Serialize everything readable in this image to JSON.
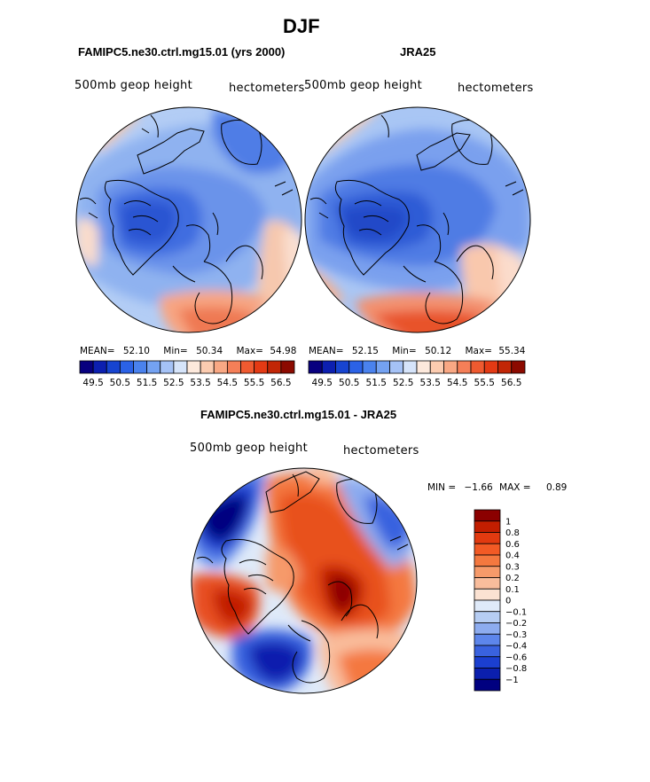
{
  "title": "DJF",
  "panels": {
    "left": {
      "run_title": "FAMIPC5.ne30.ctrl.mg15.01 (yrs 2000)",
      "field": "500mb geop height",
      "units": "hectometers",
      "mean_label": "MEAN=",
      "mean_value": "52.10",
      "min_label": "Min=",
      "min_value": "50.34",
      "max_label": "Max=",
      "max_value": "54.98"
    },
    "right": {
      "run_title": "JRA25",
      "field": "500mb geop height",
      "units": "hectometers",
      "mean_label": "MEAN=",
      "mean_value": "52.15",
      "min_label": "Min=",
      "min_value": "50.12",
      "max_label": "Max=",
      "max_value": "55.34"
    },
    "diff": {
      "run_title": "FAMIPC5.ne30.ctrl.mg15.01 - JRA25",
      "field": "500mb geop height",
      "units": "hectometers",
      "min_label": "MIN =",
      "min_value": "−1.66",
      "max_label": "MAX =",
      "max_value": "0.89"
    }
  },
  "top_colorbar": {
    "colors": [
      "#08007f",
      "#0c1fb0",
      "#1744d0",
      "#2b62e6",
      "#4a82ee",
      "#74a2f2",
      "#a5c2f6",
      "#d6e4fa",
      "#fde9dc",
      "#fcccb0",
      "#f9a884",
      "#f57f58",
      "#ef5a30",
      "#e43a14",
      "#c22606",
      "#8c0a00"
    ],
    "tick_labels": [
      "49.5",
      "50.5",
      "51.5",
      "52.5",
      "53.5",
      "54.5",
      "55.5",
      "56.5"
    ]
  },
  "diff_colorbar": {
    "colors": [
      "#8b0000",
      "#c21e00",
      "#e23a10",
      "#f25a25",
      "#f4783f",
      "#f69a6a",
      "#f9bd9c",
      "#fbe2d2",
      "#dfeaf9",
      "#b6cdf3",
      "#8dacef",
      "#5d86eb",
      "#3962df",
      "#1b3fd0",
      "#0b1fae",
      "#000080"
    ],
    "tick_labels": [
      "1",
      "0.8",
      "0.6",
      "0.4",
      "0.3",
      "0.2",
      "0.1",
      "0",
      "−0.1",
      "−0.2",
      "−0.3",
      "−0.4",
      "−0.6",
      "−0.8",
      "−1"
    ]
  }
}
